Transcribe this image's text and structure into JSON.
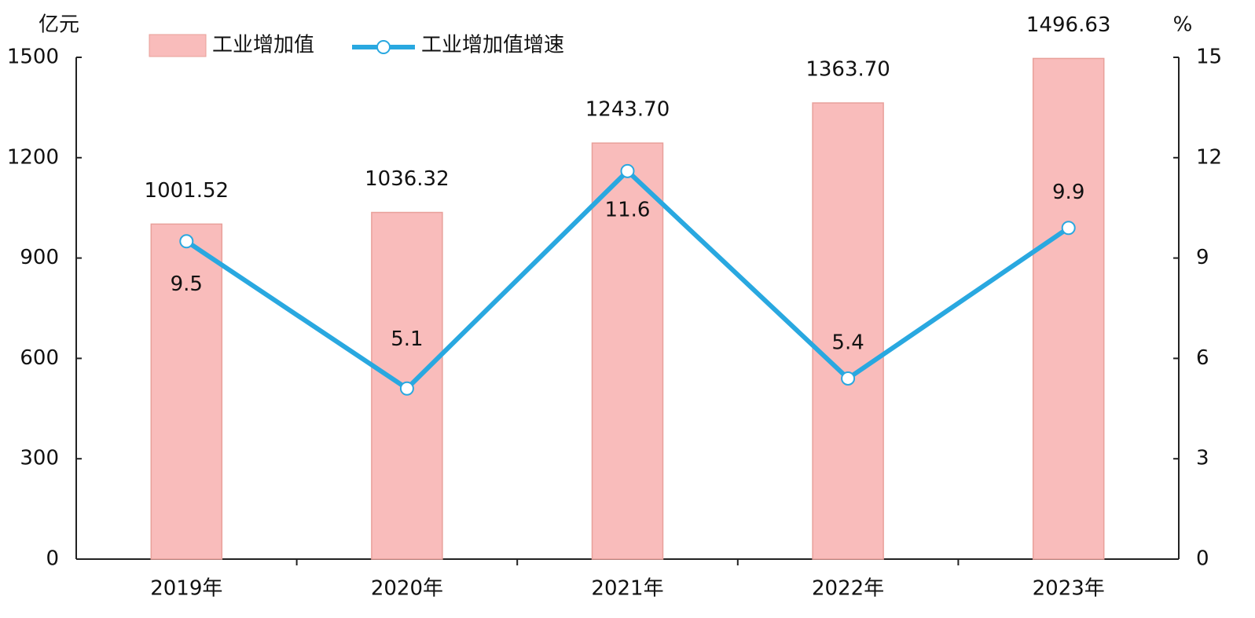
{
  "chart_data": {
    "type": "bar",
    "y_label": "亿元",
    "y2_label": "%",
    "categories": [
      "2019年",
      "2020年",
      "2021年",
      "2022年",
      "2023年"
    ],
    "series": [
      {
        "name": "工业增加值",
        "type": "bar",
        "color": "#f9bcbb",
        "values": [
          1001.52,
          1036.32,
          1243.7,
          1363.7,
          1496.63
        ],
        "value_labels": [
          "1001.52",
          "1036.32",
          "1243.70",
          "1363.70",
          "1496.63"
        ]
      },
      {
        "name": "工业增加值增速",
        "type": "line",
        "axis": "y2",
        "color": "#29a8e0",
        "values": [
          9.5,
          5.1,
          11.6,
          5.4,
          9.9
        ]
      }
    ],
    "ylim": [
      0,
      1500
    ],
    "yticks": [
      0,
      300,
      600,
      900,
      1200,
      1500
    ],
    "y2lim": [
      0,
      15
    ],
    "y2ticks": [
      0,
      3,
      6,
      9,
      12,
      15
    ],
    "grid": false,
    "legend": "top"
  }
}
